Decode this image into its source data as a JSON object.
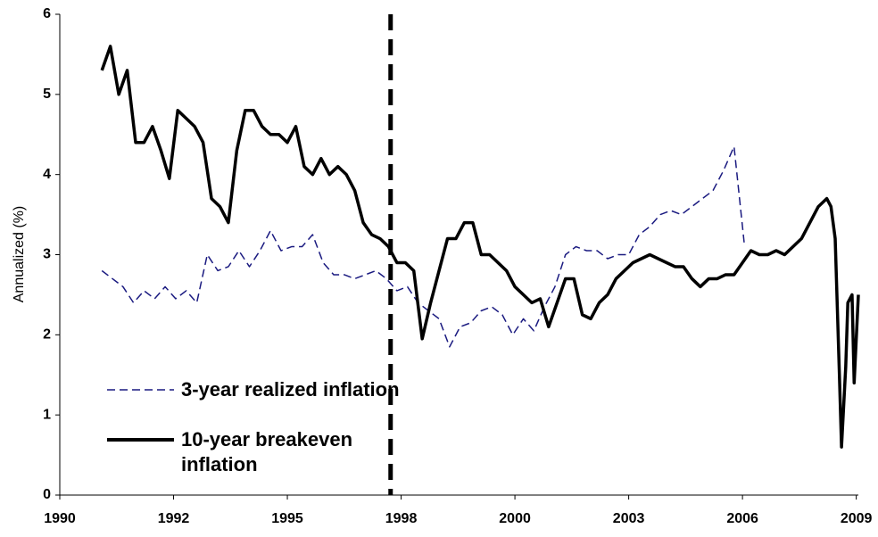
{
  "chart_data": {
    "type": "line",
    "ylabel": "Annualized (%)",
    "xlim": [
      1990,
      2008.95
    ],
    "xticks": [
      {
        "value": 1990,
        "label": "1990"
      },
      {
        "value": 1992.7,
        "label": "1992"
      },
      {
        "value": 1995.4,
        "label": "1995"
      },
      {
        "value": 1998.1,
        "label": "1998"
      },
      {
        "value": 2000.8,
        "label": "2000"
      },
      {
        "value": 2003.5,
        "label": "2003"
      },
      {
        "value": 2006.2,
        "label": "2006"
      },
      {
        "value": 2008.9,
        "label": "2009"
      }
    ],
    "ylim": [
      0,
      6
    ],
    "yticks": [
      0,
      1,
      2,
      3,
      4,
      5,
      6
    ],
    "grid": false,
    "legend": "lower left",
    "vline": 1997.85,
    "series": [
      {
        "name": "3-year realized inflation",
        "color": "#1a1a80",
        "dash": true,
        "x": [
          1991.0,
          1991.25,
          1991.5,
          1991.75,
          1992.0,
          1992.25,
          1992.5,
          1992.75,
          1993.0,
          1993.25,
          1993.5,
          1993.75,
          1994.0,
          1994.25,
          1994.5,
          1994.75,
          1995.0,
          1995.25,
          1995.5,
          1995.75,
          1996.0,
          1996.25,
          1996.5,
          1996.75,
          1997.0,
          1997.25,
          1997.5,
          1997.75,
          1998.0,
          1998.25,
          1998.5,
          1998.75,
          1999.0,
          1999.25,
          1999.5,
          1999.75,
          2000.0,
          2000.25,
          2000.5,
          2000.75,
          2001.0,
          2001.25,
          2001.5,
          2001.75,
          2002.0,
          2002.25,
          2002.5,
          2002.75,
          2003.0,
          2003.25,
          2003.5,
          2003.75,
          2004.0,
          2004.25,
          2004.5,
          2004.75,
          2005.0,
          2005.25,
          2005.5,
          2005.75,
          2006.0,
          2006.15,
          2006.25
        ],
        "values": [
          2.8,
          2.7,
          2.6,
          2.4,
          2.55,
          2.45,
          2.6,
          2.45,
          2.55,
          2.4,
          3.0,
          2.8,
          2.85,
          3.05,
          2.85,
          3.05,
          3.3,
          3.05,
          3.1,
          3.1,
          3.25,
          2.9,
          2.75,
          2.75,
          2.7,
          2.75,
          2.8,
          2.7,
          2.55,
          2.6,
          2.4,
          2.3,
          2.2,
          1.85,
          2.1,
          2.15,
          2.3,
          2.35,
          2.25,
          2.0,
          2.2,
          2.05,
          2.35,
          2.6,
          3.0,
          3.1,
          3.05,
          3.05,
          2.95,
          3.0,
          3.0,
          3.25,
          3.35,
          3.5,
          3.55,
          3.5,
          3.6,
          3.7,
          3.8,
          4.05,
          4.35,
          3.6,
          3.1
        ]
      },
      {
        "name": "10-year breakeven inflation",
        "color": "#000000",
        "dash": false,
        "x": [
          1991.0,
          1991.2,
          1991.4,
          1991.6,
          1991.8,
          1992.0,
          1992.2,
          1992.4,
          1992.6,
          1992.8,
          1993.0,
          1993.2,
          1993.4,
          1993.6,
          1993.8,
          1994.0,
          1994.2,
          1994.4,
          1994.6,
          1994.8,
          1995.0,
          1995.2,
          1995.4,
          1995.6,
          1995.8,
          1996.0,
          1996.2,
          1996.4,
          1996.6,
          1996.8,
          1997.0,
          1997.2,
          1997.4,
          1997.6,
          1997.8,
          1998.0,
          1998.2,
          1998.4,
          1998.6,
          1998.8,
          1999.0,
          1999.2,
          1999.4,
          1999.6,
          1999.8,
          2000.0,
          2000.2,
          2000.4,
          2000.6,
          2000.8,
          2001.0,
          2001.2,
          2001.4,
          2001.6,
          2001.8,
          2002.0,
          2002.2,
          2002.4,
          2002.6,
          2002.8,
          2003.0,
          2003.2,
          2003.4,
          2003.6,
          2003.8,
          2004.0,
          2004.2,
          2004.4,
          2004.6,
          2004.8,
          2005.0,
          2005.2,
          2005.4,
          2005.6,
          2005.8,
          2006.0,
          2006.2,
          2006.4,
          2006.6,
          2006.8,
          2007.0,
          2007.2,
          2007.4,
          2007.6,
          2007.8,
          2008.0,
          2008.2,
          2008.3,
          2008.4,
          2008.5,
          2008.55,
          2008.65,
          2008.7,
          2008.8,
          2008.85,
          2008.95
        ],
        "values": [
          5.3,
          5.6,
          5.0,
          5.3,
          4.4,
          4.4,
          4.6,
          4.3,
          3.95,
          4.8,
          4.7,
          4.6,
          4.4,
          3.7,
          3.6,
          3.4,
          4.3,
          4.8,
          4.8,
          4.6,
          4.5,
          4.5,
          4.4,
          4.6,
          4.1,
          4.0,
          4.2,
          4.0,
          4.1,
          4.0,
          3.8,
          3.4,
          3.25,
          3.2,
          3.1,
          2.9,
          2.9,
          2.8,
          1.95,
          2.4,
          2.8,
          3.2,
          3.2,
          3.4,
          3.4,
          3.0,
          3.0,
          2.9,
          2.8,
          2.6,
          2.5,
          2.4,
          2.45,
          2.1,
          2.4,
          2.7,
          2.7,
          2.25,
          2.2,
          2.4,
          2.5,
          2.7,
          2.8,
          2.9,
          2.95,
          3.0,
          2.95,
          2.9,
          2.85,
          2.85,
          2.7,
          2.6,
          2.7,
          2.7,
          2.75,
          2.75,
          2.9,
          3.05,
          3.0,
          3.0,
          3.05,
          3.0,
          3.1,
          3.2,
          3.4,
          3.6,
          3.7,
          3.6,
          3.2,
          1.5,
          0.6,
          1.6,
          2.4,
          2.5,
          1.4,
          2.5
        ]
      }
    ]
  }
}
